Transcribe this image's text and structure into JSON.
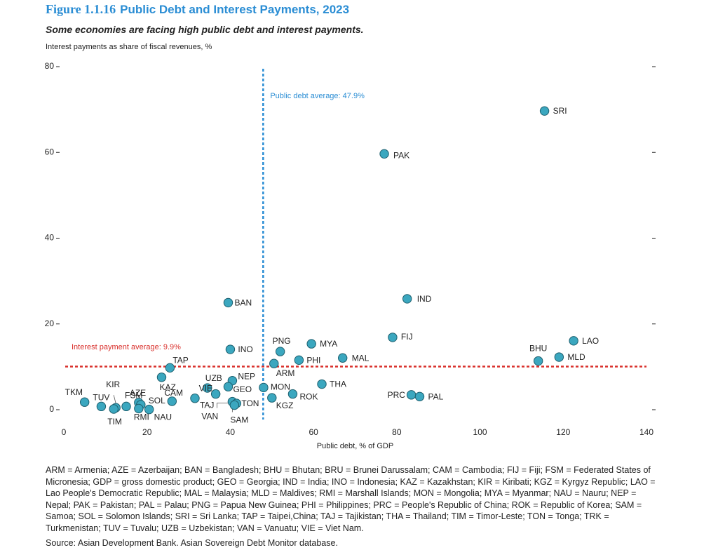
{
  "header": {
    "figure_number": "Figure 1.1.16",
    "title": "Public Debt and Interest Payments, 2023",
    "subtitle": "Some economies are facing high public debt and interest payments."
  },
  "chart_data": {
    "type": "scatter",
    "ylabel": "Interest payments as share of fiscal revenues, %",
    "xlabel": "Public debt, % of GDP",
    "xlim": [
      0,
      140
    ],
    "ylim": [
      0,
      80
    ],
    "x_ticks": [
      "0",
      "20",
      "40",
      "60",
      "80",
      "100",
      "120",
      "140"
    ],
    "y_ticks": [
      "0",
      "20",
      "40",
      "60",
      "80"
    ],
    "grid": false,
    "marker_color": "#3ba7bf",
    "reference_lines": [
      {
        "axis": "x",
        "value": 47.9,
        "label": "Public debt average: 47.9%",
        "color": "#2a8dd4"
      },
      {
        "axis": "y",
        "value": 9.9,
        "label": "Interest payment average: 9.9%",
        "color": "#d9302c"
      }
    ],
    "points": [
      {
        "label": "SRI",
        "x": 115.5,
        "y": 69.5
      },
      {
        "label": "PAK",
        "x": 77.0,
        "y": 59.5
      },
      {
        "label": "IND",
        "x": 82.5,
        "y": 25.7
      },
      {
        "label": "BAN",
        "x": 39.5,
        "y": 24.8
      },
      {
        "label": "FIJ",
        "x": 79.0,
        "y": 16.7
      },
      {
        "label": "LAO",
        "x": 122.5,
        "y": 15.9
      },
      {
        "label": "MYA",
        "x": 59.5,
        "y": 15.2
      },
      {
        "label": "INO",
        "x": 40.0,
        "y": 13.9
      },
      {
        "label": "PNG",
        "x": 52.0,
        "y": 13.4
      },
      {
        "label": "MLD",
        "x": 119.0,
        "y": 12.1
      },
      {
        "label": "MAL",
        "x": 67.0,
        "y": 11.9
      },
      {
        "label": "PHI",
        "x": 56.5,
        "y": 11.4
      },
      {
        "label": "BHU",
        "x": 114.0,
        "y": 11.2
      },
      {
        "label": "ARM",
        "x": 50.5,
        "y": 10.6
      },
      {
        "label": "TAP",
        "x": 25.5,
        "y": 9.6
      },
      {
        "label": "KAZ",
        "x": 23.5,
        "y": 7.4
      },
      {
        "label": "NEP",
        "x": 40.5,
        "y": 6.6
      },
      {
        "label": "THA",
        "x": 62.0,
        "y": 5.8
      },
      {
        "label": "GEO",
        "x": 39.5,
        "y": 5.2
      },
      {
        "label": "MON",
        "x": 48.0,
        "y": 5.0
      },
      {
        "label": "UZB",
        "x": 34.5,
        "y": 4.9
      },
      {
        "label": "VIE",
        "x": 36.5,
        "y": 3.5
      },
      {
        "label": "ROK",
        "x": 55.0,
        "y": 3.5
      },
      {
        "label": "PRC",
        "x": 83.5,
        "y": 3.3
      },
      {
        "label": "PAL",
        "x": 85.5,
        "y": 2.9
      },
      {
        "label": "KGZ",
        "x": 50.0,
        "y": 2.6
      },
      {
        "label": "TAJ",
        "x": 31.5,
        "y": 2.5
      },
      {
        "label": "CAM",
        "x": 26.0,
        "y": 1.8
      },
      {
        "label": "TKM",
        "x": 5.0,
        "y": 1.6
      },
      {
        "label": "AZE",
        "x": 18.0,
        "y": 1.5
      },
      {
        "label": "VAN",
        "x": 40.5,
        "y": 1.7
      },
      {
        "label": "TON",
        "x": 41.5,
        "y": 1.3
      },
      {
        "label": "SAM",
        "x": 41.0,
        "y": 0.9
      },
      {
        "label": "SOL",
        "x": 18.5,
        "y": 1.0
      },
      {
        "label": "TUV",
        "x": 9.0,
        "y": 0.6
      },
      {
        "label": "FSM",
        "x": 15.0,
        "y": 0.6
      },
      {
        "label": "KIR",
        "x": 12.5,
        "y": 0.3
      },
      {
        "label": "TIM",
        "x": 12.0,
        "y": 0.0
      },
      {
        "label": "RMI",
        "x": 18.0,
        "y": 0.1
      },
      {
        "label": "NAU",
        "x": 20.5,
        "y": -0.1
      }
    ]
  },
  "notes": "ARM = Armenia; AZE = Azerbaijan; BAN = Bangladesh; BHU = Bhutan; BRU = Brunei Darussalam; CAM = Cambodia; FIJ = Fiji; FSM = Federated States of Micronesia; GDP = gross domestic product; GEO = Georgia; IND = India; INO = Indonesia; KAZ = Kazakhstan; KIR = Kiribati; KGZ = Kyrgyz Republic; LAO = Lao People's Democratic Republic; MAL = Malaysia; MLD = Maldives; RMI = Marshall Islands; MON = Mongolia; MYA = Myanmar; NAU = Nauru; NEP = Nepal; PAK = Pakistan; PAL = Palau; PNG = Papua New Guinea; PHI = Philippines; PRC = People's Republic of China; ROK = Republic of Korea; SAM = Samoa; SOL = Solomon Islands; SRI = Sri Lanka; TAP = Taipei,China; TAJ = Tajikistan; THA = Thailand; TIM = Timor-Leste; TON = Tonga; TRK = Turkmenistan; TUV = Tuvalu; UZB = Uzbekistan; VAN = Vanuatu; VIE = Viet Nam.",
  "source": "Source: Asian Development Bank. Asian Sovereign Debt Monitor database."
}
